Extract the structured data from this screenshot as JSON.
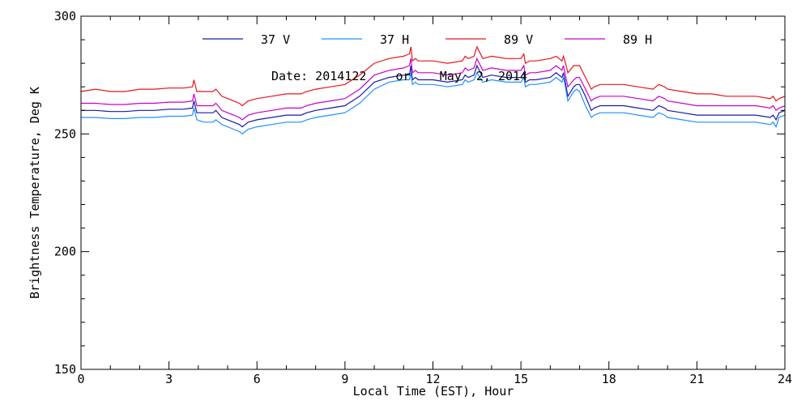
{
  "chart_data": {
    "type": "line",
    "xlabel": "Local Time (EST), Hour",
    "ylabel": "Brightness Temperature, Deg K",
    "xlim": [
      0,
      24
    ],
    "ylim": [
      150,
      300
    ],
    "xticks": [
      0,
      3,
      6,
      9,
      12,
      15,
      18,
      21,
      24
    ],
    "yticks": [
      150,
      200,
      250,
      300
    ],
    "grid": false,
    "legend_position": "top",
    "annotation": "Date: 2014122    or    May  2, 2014",
    "series": [
      {
        "name": "37 V",
        "color": "#1a1aa8",
        "x": [
          0,
          0.5,
          1,
          1.5,
          2,
          2.5,
          3,
          3.5,
          3.8,
          3.85,
          3.95,
          4.2,
          4.5,
          4.6,
          4.8,
          5,
          5.2,
          5.4,
          5.5,
          5.7,
          6,
          6.5,
          7,
          7.5,
          7.7,
          8,
          8.5,
          9,
          9.5,
          10,
          10.5,
          11,
          11.2,
          11.25,
          11.3,
          11.4,
          11.5,
          12,
          12.5,
          13,
          13.1,
          13.2,
          13.4,
          13.5,
          13.7,
          14,
          14.5,
          15,
          15.1,
          15.15,
          15.3,
          15.5,
          16,
          16.2,
          16.4,
          16.45,
          16.5,
          16.6,
          16.8,
          16.9,
          17,
          17.2,
          17.4,
          17.5,
          17.7,
          18,
          18.5,
          19,
          19.5,
          19.7,
          19.9,
          20,
          20.5,
          21,
          21.5,
          22,
          22.5,
          23,
          23.5,
          23.6,
          23.7,
          23.8,
          24
        ],
        "y": [
          260,
          260,
          259.5,
          259.5,
          260,
          260,
          260.5,
          260.5,
          261,
          264,
          259,
          259,
          259,
          260,
          257,
          256,
          255,
          254,
          253,
          255,
          256,
          257,
          258,
          258,
          259,
          260,
          261,
          262,
          266,
          272,
          274,
          275,
          275,
          279,
          273,
          274,
          273,
          273,
          272,
          273,
          275,
          274,
          275,
          279,
          274,
          275,
          274,
          274,
          276,
          272,
          273,
          273,
          274,
          276,
          274,
          276,
          273,
          266,
          270,
          271,
          271,
          266,
          260,
          261,
          262,
          262,
          262,
          261,
          260,
          262,
          261,
          260,
          259,
          258,
          258,
          258,
          258,
          258,
          257,
          258,
          256,
          259,
          260
        ]
      },
      {
        "name": "37 H",
        "color": "#1e90ff",
        "x": [
          0,
          0.5,
          1,
          1.5,
          2,
          2.5,
          3,
          3.5,
          3.8,
          3.85,
          3.95,
          4.2,
          4.5,
          4.6,
          4.8,
          5,
          5.2,
          5.4,
          5.5,
          5.7,
          6,
          6.5,
          7,
          7.5,
          7.7,
          8,
          8.5,
          9,
          9.5,
          10,
          10.5,
          11,
          11.2,
          11.25,
          11.3,
          11.4,
          11.5,
          12,
          12.5,
          13,
          13.1,
          13.2,
          13.4,
          13.5,
          13.7,
          14,
          14.5,
          15,
          15.1,
          15.15,
          15.3,
          15.5,
          16,
          16.2,
          16.4,
          16.45,
          16.5,
          16.6,
          16.8,
          16.9,
          17,
          17.2,
          17.4,
          17.5,
          17.7,
          18,
          18.5,
          19,
          19.5,
          19.7,
          19.9,
          20,
          20.5,
          21,
          21.5,
          22,
          22.5,
          23,
          23.5,
          23.6,
          23.7,
          23.8,
          24
        ],
        "y": [
          257,
          257,
          256.5,
          256.5,
          257,
          257,
          257.5,
          257.5,
          258,
          261,
          256,
          255,
          255,
          256,
          254,
          253,
          252,
          251,
          250,
          252,
          253,
          254,
          255,
          255,
          256,
          257,
          258,
          259,
          263,
          269,
          272,
          273,
          273,
          276,
          271,
          272,
          271,
          271,
          270,
          271,
          273,
          272,
          273,
          276,
          272,
          273,
          272,
          272,
          274,
          270,
          271,
          271,
          272,
          274,
          272,
          274,
          271,
          264,
          268,
          269,
          268,
          262,
          257,
          258,
          259,
          259,
          259,
          258,
          257,
          259,
          258,
          257,
          256,
          255,
          255,
          255,
          255,
          255,
          254,
          255,
          253,
          257,
          258
        ]
      },
      {
        "name": "89 V",
        "color": "#e8141e",
        "x": [
          0,
          0.5,
          1,
          1.5,
          2,
          2.5,
          3,
          3.5,
          3.8,
          3.85,
          3.95,
          4.2,
          4.5,
          4.6,
          4.8,
          5,
          5.2,
          5.4,
          5.5,
          5.7,
          6,
          6.5,
          7,
          7.5,
          7.7,
          8,
          8.5,
          9,
          9.5,
          10,
          10.5,
          11,
          11.2,
          11.25,
          11.3,
          11.4,
          11.5,
          12,
          12.5,
          13,
          13.1,
          13.2,
          13.4,
          13.5,
          13.7,
          14,
          14.5,
          15,
          15.1,
          15.15,
          15.3,
          15.5,
          16,
          16.2,
          16.4,
          16.45,
          16.5,
          16.6,
          16.8,
          16.9,
          17,
          17.2,
          17.4,
          17.5,
          17.7,
          18,
          18.5,
          19,
          19.5,
          19.7,
          19.9,
          20,
          20.5,
          21,
          21.5,
          22,
          22.5,
          23,
          23.5,
          23.6,
          23.7,
          23.8,
          24
        ],
        "y": [
          268,
          269,
          268,
          268,
          269,
          269,
          269.5,
          269.5,
          270,
          273,
          268,
          268,
          268,
          269,
          266,
          265,
          264,
          263,
          262,
          264,
          265,
          266,
          267,
          267,
          268,
          269,
          270,
          271,
          275,
          280,
          282,
          283,
          284,
          287,
          281,
          282,
          281,
          281,
          280,
          281,
          283,
          282,
          283,
          287,
          282,
          283,
          282,
          282,
          284,
          280,
          281,
          281,
          282,
          283,
          281,
          283,
          281,
          276,
          279,
          279,
          279,
          274,
          269,
          270,
          271,
          271,
          271,
          270,
          269,
          271,
          270,
          269,
          268,
          267,
          267,
          266,
          266,
          266,
          265,
          266,
          264,
          265,
          266
        ]
      },
      {
        "name": "89 H",
        "color": "#c800c8",
        "x": [
          0,
          0.5,
          1,
          1.5,
          2,
          2.5,
          3,
          3.5,
          3.8,
          3.85,
          3.95,
          4.2,
          4.5,
          4.6,
          4.8,
          5,
          5.2,
          5.4,
          5.5,
          5.7,
          6,
          6.5,
          7,
          7.5,
          7.7,
          8,
          8.5,
          9,
          9.5,
          10,
          10.5,
          11,
          11.2,
          11.25,
          11.3,
          11.4,
          11.5,
          12,
          12.5,
          13,
          13.1,
          13.2,
          13.4,
          13.5,
          13.7,
          14,
          14.5,
          15,
          15.1,
          15.15,
          15.3,
          15.5,
          16,
          16.2,
          16.4,
          16.45,
          16.5,
          16.6,
          16.8,
          16.9,
          17,
          17.2,
          17.4,
          17.5,
          17.7,
          18,
          18.5,
          19,
          19.5,
          19.7,
          19.9,
          20,
          20.5,
          21,
          21.5,
          22,
          22.5,
          23,
          23.5,
          23.6,
          23.7,
          23.8,
          24
        ],
        "y": [
          263,
          263,
          262.5,
          262.5,
          263,
          263,
          263.5,
          263.5,
          264,
          267,
          262,
          262,
          262,
          263,
          260,
          259,
          258,
          257,
          256,
          258,
          259,
          260,
          261,
          261,
          262,
          263,
          264,
          265,
          269,
          275,
          277,
          278,
          279,
          282,
          276,
          277,
          276,
          276,
          275,
          276,
          278,
          277,
          278,
          282,
          277,
          278,
          277,
          277,
          279,
          275,
          276,
          276,
          277,
          279,
          277,
          279,
          276,
          270,
          273,
          274,
          274,
          269,
          264,
          265,
          266,
          266,
          266,
          265,
          264,
          266,
          265,
          264,
          263,
          262,
          262,
          262,
          262,
          262,
          261,
          262,
          260,
          261,
          262
        ]
      }
    ]
  }
}
